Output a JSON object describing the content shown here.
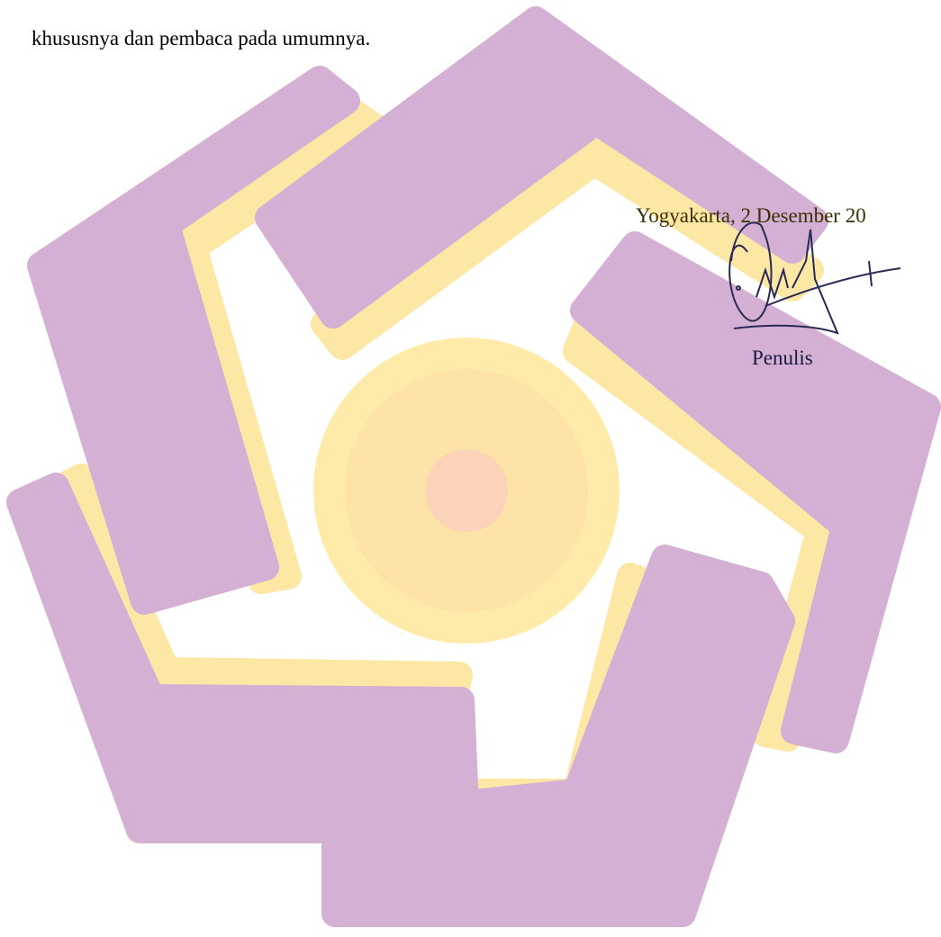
{
  "body": {
    "closing_line": "khususnya dan pembaca pada umumnya."
  },
  "signature_block": {
    "place_date": "Yogyakarta, 2 Desember 20",
    "role": "Penulis"
  }
}
